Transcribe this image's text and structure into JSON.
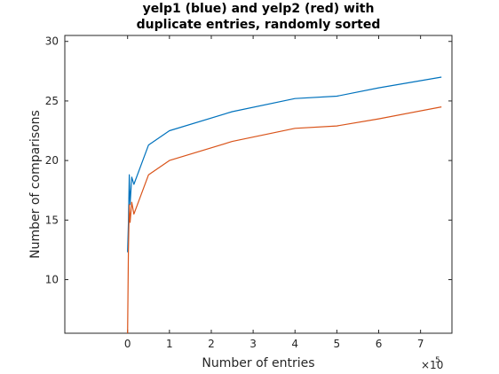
{
  "chart_data": {
    "type": "line",
    "title_lines": [
      "yelp1 (blue) and yelp2 (red) with",
      "duplicate entries, randomly sorted"
    ],
    "xlabel": "Number of entries",
    "ylabel": "Number of comparisons",
    "x_exponent_label": "×10",
    "x_exponent_power": "5",
    "x_multiplier": 100000,
    "xlim": [
      -1.5,
      7.75
    ],
    "ylim": [
      5.5,
      30.5
    ],
    "x_ticks": [
      0,
      1,
      2,
      3,
      4,
      5,
      6,
      7
    ],
    "x_tick_labels": [
      "0",
      "1",
      "2",
      "3",
      "4",
      "5",
      "6",
      "7"
    ],
    "y_ticks": [
      10,
      15,
      20,
      25,
      30
    ],
    "y_tick_labels": [
      "10",
      "15",
      "20",
      "25",
      "30"
    ],
    "grid": false,
    "series": [
      {
        "color": "#0072bd",
        "x": [
          0.0,
          0.02,
          0.04,
          0.06,
          0.1,
          0.15,
          0.5,
          1.0,
          2.5,
          4.0,
          5.0,
          6.0,
          7.5
        ],
        "y": [
          12.3,
          14.7,
          18.8,
          16.3,
          18.6,
          18.0,
          21.3,
          22.5,
          24.1,
          25.2,
          25.4,
          26.1,
          27.0
        ]
      },
      {
        "color": "#d95319",
        "x": [
          0.0,
          0.02,
          0.04,
          0.06,
          0.1,
          0.15,
          0.5,
          1.0,
          2.5,
          4.0,
          5.0,
          6.0,
          7.5
        ],
        "y": [
          5.5,
          12.3,
          16.3,
          14.8,
          16.5,
          15.5,
          18.8,
          20.0,
          21.6,
          22.7,
          22.9,
          23.5,
          24.5
        ]
      }
    ]
  }
}
